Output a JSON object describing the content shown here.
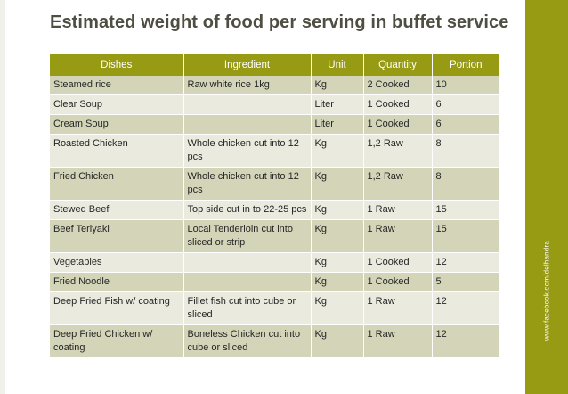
{
  "title": "Estimated weight of food per serving in buffet service",
  "sidebar_text": "www.facebook.com/delhandra",
  "colors": {
    "accent": "#979a13",
    "row_dark": "#d4d4b9",
    "row_light": "#eaeadf",
    "title": "#4e4e42"
  },
  "table": {
    "headers": [
      "Dishes",
      "Ingredient",
      "Unit",
      "Quantity",
      "Portion"
    ],
    "rows": [
      [
        "Steamed rice",
        "Raw white rice 1kg",
        "Kg",
        "2 Cooked",
        "10"
      ],
      [
        "Clear Soup",
        "",
        "Liter",
        "1 Cooked",
        "6"
      ],
      [
        "Cream Soup",
        "",
        "Liter",
        "1 Cooked",
        "6"
      ],
      [
        "Roasted Chicken",
        "Whole chicken cut into 12 pcs",
        "Kg",
        "1,2 Raw",
        "8"
      ],
      [
        "Fried Chicken",
        "Whole chicken cut into 12 pcs",
        "Kg",
        "1,2 Raw",
        "8"
      ],
      [
        "Stewed Beef",
        "Top side cut in to 22-25 pcs",
        "Kg",
        "1 Raw",
        "15"
      ],
      [
        "Beef Teriyaki",
        "Local Tenderloin cut into sliced or strip",
        "Kg",
        "1 Raw",
        "15"
      ],
      [
        "Vegetables",
        "",
        "Kg",
        "1 Cooked",
        "12"
      ],
      [
        "Fried Noodle",
        "",
        "Kg",
        "1 Cooked",
        "5"
      ],
      [
        "Deep Fried Fish w/ coating",
        "Fillet fish cut into cube or sliced",
        "Kg",
        "1 Raw",
        "12"
      ],
      [
        "Deep Fried Chicken w/ coating",
        "Boneless Chicken cut into cube or sliced",
        "Kg",
        "1 Raw",
        "12"
      ]
    ]
  }
}
